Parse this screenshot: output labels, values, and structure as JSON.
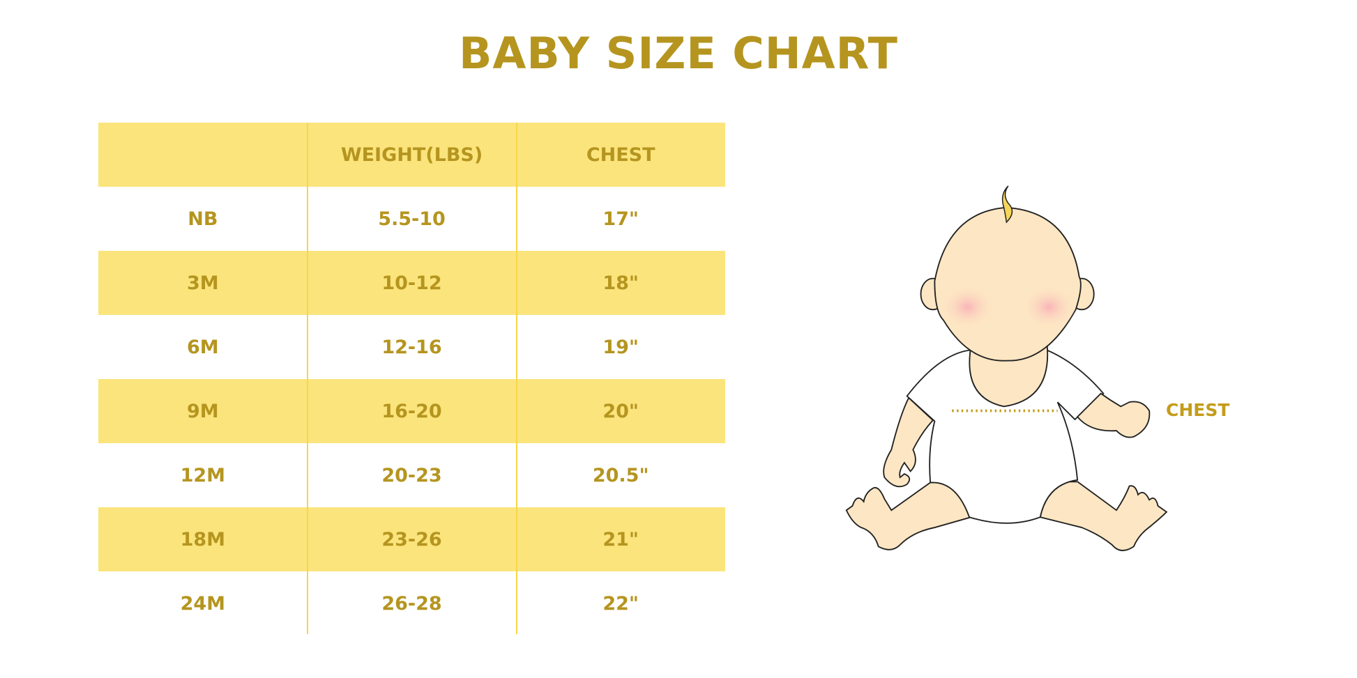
{
  "title": "BABY SIZE CHART",
  "table": {
    "headers": [
      "",
      "WEIGHT(LBS)",
      "CHEST"
    ],
    "rows": [
      [
        "NB",
        "5.5-10",
        "17\""
      ],
      [
        "3M",
        "10-12",
        "18\""
      ],
      [
        "6M",
        "12-16",
        "19\""
      ],
      [
        "9M",
        "16-20",
        "20\""
      ],
      [
        "12M",
        "20-23",
        "20.5\""
      ],
      [
        "18M",
        "23-26",
        "21\""
      ],
      [
        "24M",
        "26-28",
        "22\""
      ]
    ]
  },
  "illustration": {
    "label": "CHEST"
  },
  "colors": {
    "text": "#b5951f",
    "stripe": "#fbe47c",
    "skin": "#fde6c3",
    "cheek": "#f9b4b8"
  }
}
